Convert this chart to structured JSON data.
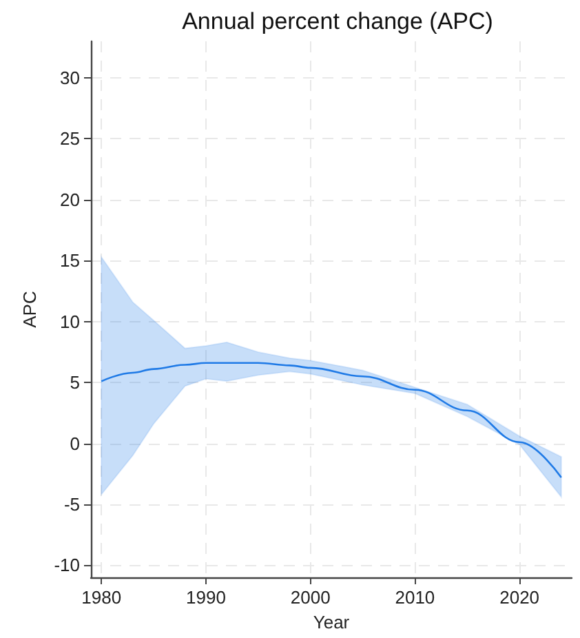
{
  "chart_data": {
    "type": "line",
    "title": "Annual percent change (APC)",
    "xlabel": "Year",
    "ylabel": "APC",
    "x": [
      1980,
      1983,
      1985,
      1988,
      1990,
      1992,
      1995,
      1998,
      2000,
      2005,
      2010,
      2015,
      2020,
      2024
    ],
    "series": [
      {
        "color": "#1f7ae6",
        "values": [
          5.1,
          5.8,
          6.1,
          6.45,
          6.6,
          6.6,
          6.6,
          6.4,
          6.2,
          5.5,
          4.4,
          2.7,
          0.1,
          -2.8
        ],
        "lower": [
          -4.2,
          -1.0,
          1.6,
          4.7,
          5.3,
          5.1,
          5.6,
          5.9,
          5.7,
          4.8,
          4.1,
          2.2,
          -0.1,
          -4.4
        ],
        "upper": [
          15.3,
          11.6,
          10.1,
          7.8,
          8.0,
          8.3,
          7.5,
          7.0,
          6.8,
          6.0,
          4.6,
          3.2,
          0.6,
          -1.1
        ]
      }
    ],
    "xlim": [
      1979,
      2025
    ],
    "xticks": [
      1980,
      1990,
      2000,
      2010,
      2020
    ],
    "ylim": [
      -11,
      33
    ],
    "yticks": [
      -10,
      -5,
      0,
      5,
      10,
      15,
      20,
      25,
      30
    ],
    "grid": true,
    "line_style": "solid",
    "marker": "none",
    "legend": false
  }
}
